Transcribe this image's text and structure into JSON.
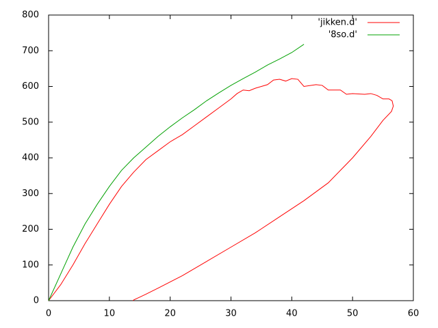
{
  "chart_data": {
    "type": "line",
    "series": [
      {
        "name": "'jikken.d'",
        "color": "#ff0000",
        "x": [
          0,
          2,
          4,
          6,
          8,
          10,
          12,
          14,
          16,
          18,
          20,
          22,
          24,
          26,
          28,
          30,
          31,
          32,
          33,
          34,
          35,
          36,
          37,
          38,
          39,
          40,
          41,
          42,
          44,
          45,
          46,
          48,
          49,
          50,
          52,
          53,
          54,
          55,
          56,
          56.5,
          56.7,
          56.4,
          55,
          53,
          50,
          46,
          42,
          38,
          34,
          30,
          26,
          22,
          18,
          16,
          15,
          14,
          13.9
        ],
        "values": [
          0,
          45,
          100,
          160,
          215,
          270,
          320,
          360,
          395,
          420,
          445,
          465,
          490,
          515,
          540,
          565,
          580,
          590,
          588,
          595,
          600,
          605,
          618,
          620,
          615,
          622,
          620,
          600,
          605,
          603,
          590,
          590,
          578,
          580,
          578,
          580,
          575,
          565,
          565,
          560,
          545,
          530,
          505,
          460,
          400,
          330,
          280,
          235,
          190,
          150,
          110,
          70,
          35,
          18,
          10,
          2,
          0
        ]
      },
      {
        "name": "'8so.d'",
        "color": "#00a000",
        "x": [
          0,
          2,
          4,
          6,
          8,
          10,
          12,
          14,
          16,
          18,
          20,
          22,
          24,
          26,
          28,
          30,
          32,
          34,
          36,
          38,
          40,
          42
        ],
        "values": [
          0,
          75,
          150,
          215,
          270,
          320,
          365,
          400,
          430,
          460,
          487,
          512,
          535,
          560,
          582,
          603,
          622,
          640,
          660,
          677,
          695,
          718
        ]
      }
    ],
    "xlim": [
      0,
      60
    ],
    "xticks": [
      0,
      10,
      20,
      30,
      40,
      50,
      60
    ],
    "ylim": [
      0,
      800
    ],
    "yticks": [
      0,
      100,
      200,
      300,
      400,
      500,
      600,
      700,
      800
    ],
    "grid": false,
    "legend": "top-right"
  }
}
